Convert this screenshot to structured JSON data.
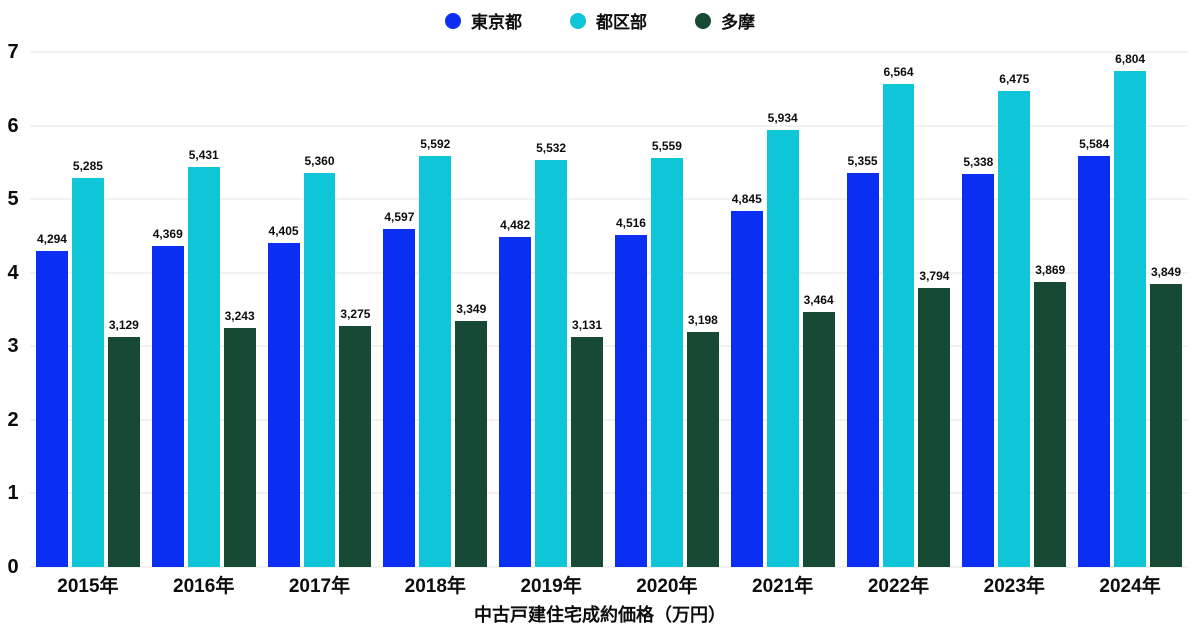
{
  "colors": {
    "tokyo_blue": "#0b2ff2",
    "kubu_cyan": "#0fc6d9",
    "tama_green": "#164a34",
    "grid": "#f2f2f2",
    "text": "#0d0d0d",
    "background": "#ffffff"
  },
  "chart_data": {
    "type": "bar",
    "title": "中古戸建住宅成約価格（万円）",
    "categories": [
      "2015年",
      "2016年",
      "2017年",
      "2018年",
      "2019年",
      "2020年",
      "2021年",
      "2022年",
      "2023年",
      "2024年"
    ],
    "series": [
      {
        "name": "東京都",
        "color": "#0b2ff2",
        "values": [
          4294,
          4369,
          4405,
          4597,
          4482,
          4516,
          4845,
          5355,
          5338,
          5584
        ]
      },
      {
        "name": "都区部",
        "color": "#0fc6d9",
        "values": [
          5285,
          5431,
          5360,
          5592,
          5532,
          5559,
          5934,
          6564,
          6475,
          6804
        ]
      },
      {
        "name": "多摩",
        "color": "#164a34",
        "values": [
          3129,
          3243,
          3275,
          3349,
          3131,
          3198,
          3464,
          3794,
          3869,
          3849
        ]
      }
    ],
    "y_ticks": [
      "0",
      "1",
      "2",
      "3",
      "4",
      "5",
      "6",
      "7"
    ],
    "ylim": [
      0,
      7
    ],
    "value_axis_scale": 1000,
    "grid": true,
    "legend_position": "top",
    "data_labels": true
  }
}
